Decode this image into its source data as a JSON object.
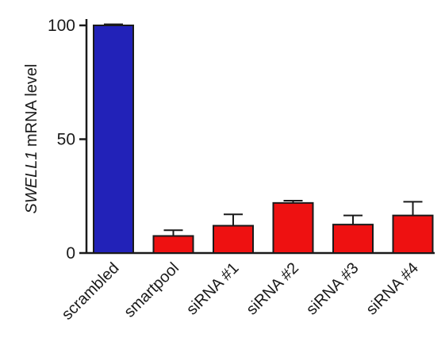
{
  "chart_data": {
    "type": "bar",
    "categories": [
      "scrambled",
      "smartpool",
      "siRNA #1",
      "siRNA #2",
      "siRNA #3",
      "siRNA #4"
    ],
    "values": [
      100,
      7.5,
      12,
      22,
      12.5,
      16.5
    ],
    "errors": [
      0.5,
      2.5,
      5,
      1,
      4,
      6
    ],
    "colors": [
      "#2222b8",
      "#ee1111",
      "#ee1111",
      "#ee1111",
      "#ee1111",
      "#ee1111"
    ],
    "ylabel_italic": "SWELL1",
    "ylabel_rest": " mRNA level",
    "ylim": [
      0,
      100
    ],
    "yticks": [
      0,
      50,
      100
    ]
  }
}
